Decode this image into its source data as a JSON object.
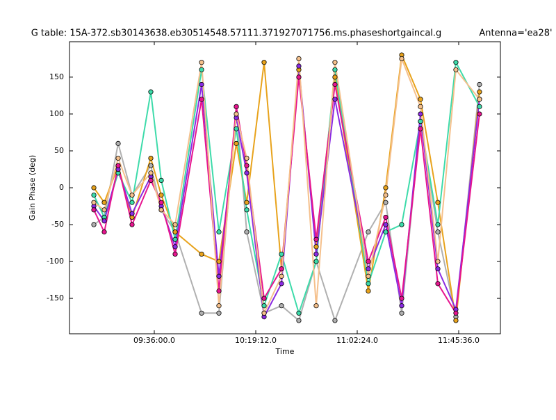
{
  "chart_data": {
    "type": "line",
    "title": "G table: 15A-372.sb30143638.eb30514548.57111.371927071756.ms.phaseshortgaincal.g",
    "subtitle": "Antenna='ea28'",
    "x_label": "Time",
    "y_label": "Gain Phase (deg)",
    "x": [
      33016,
      33282,
      33637,
      33992,
      34471,
      34738,
      35093,
      35768,
      36211,
      36655,
      36921,
      37365,
      37809,
      38252,
      38696,
      39175,
      40027,
      40471,
      40880,
      41359,
      41803,
      42264,
      42867
    ],
    "xlim": [
      32394,
      43401
    ],
    "xticks": [
      {
        "value": 34560,
        "label": "09:36:00.0"
      },
      {
        "value": 37152,
        "label": "10:19:12.0"
      },
      {
        "value": 39744,
        "label": "11:02:24.0"
      },
      {
        "value": 42336,
        "label": "11:45:36.0"
      }
    ],
    "ylim": [
      -198,
      198
    ],
    "yticks": [
      -150,
      -100,
      -50,
      0,
      50,
      100,
      150
    ],
    "grid": false,
    "series": [
      {
        "color": "#b0b0b0",
        "values": [
          -50,
          -40,
          60,
          -10,
          30,
          -30,
          -60,
          -170,
          -170,
          110,
          -60,
          -170,
          -160,
          -180,
          -100,
          -180,
          -60,
          -20,
          -170,
          90,
          -60,
          -175,
          140
        ]
      },
      {
        "color": "#e8a31c",
        "values": [
          0,
          -20,
          30,
          -40,
          40,
          -10,
          -60,
          -90,
          -100,
          60,
          -20,
          170,
          -110,
          160,
          -80,
          150,
          -140,
          0,
          180,
          120,
          -20,
          -180,
          130
        ]
      },
      {
        "color": "#3ddbaa",
        "values": [
          -10,
          -40,
          20,
          -20,
          130,
          10,
          -70,
          160,
          -60,
          80,
          -30,
          -160,
          -90,
          -170,
          -100,
          160,
          -130,
          -60,
          -50,
          90,
          -50,
          170,
          110
        ]
      },
      {
        "color": "#8a2be2",
        "values": [
          -25,
          -45,
          25,
          -35,
          15,
          -25,
          -80,
          140,
          -120,
          95,
          20,
          -175,
          -130,
          165,
          -90,
          120,
          -110,
          -50,
          -160,
          100,
          -110,
          -165,
          120
        ]
      },
      {
        "color": "#e7158f",
        "values": [
          -30,
          -60,
          30,
          -50,
          10,
          -20,
          -90,
          120,
          -140,
          110,
          30,
          -150,
          -110,
          150,
          -70,
          140,
          -100,
          -40,
          -150,
          80,
          -130,
          -170,
          100
        ]
      },
      {
        "color": "#f5c08c",
        "values": [
          -20,
          -30,
          40,
          -10,
          20,
          -30,
          -50,
          170,
          -160,
          100,
          40,
          -170,
          -120,
          175,
          -160,
          170,
          -120,
          -10,
          175,
          110,
          -100,
          160,
          120
        ]
      }
    ]
  }
}
